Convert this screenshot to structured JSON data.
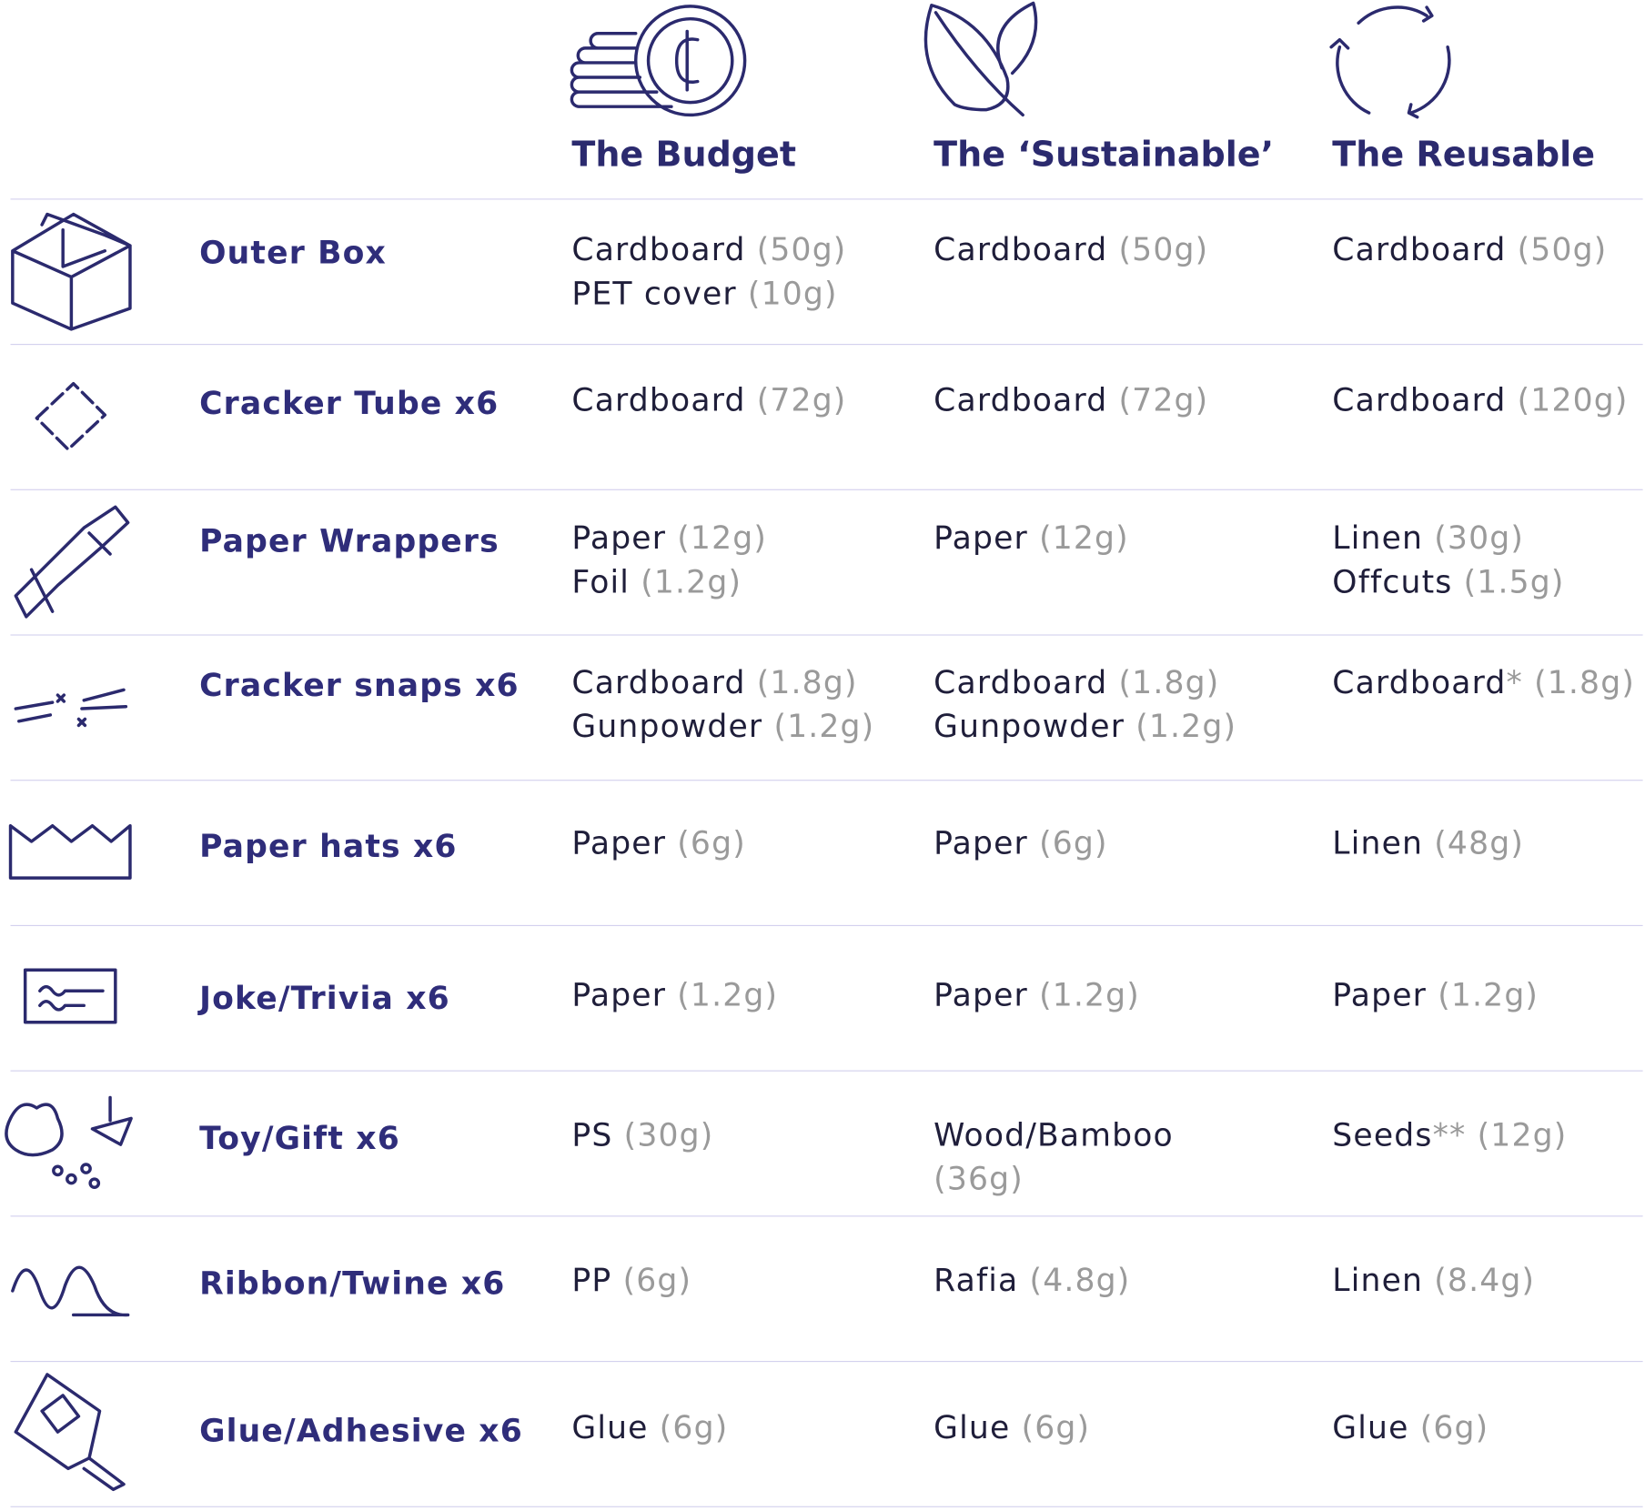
{
  "header": {
    "columns": [
      "The Budget",
      "The ‘Sustainable’",
      "The Reusable"
    ]
  },
  "rows": [
    {
      "item": "Outer Box",
      "cells": [
        [
          {
            "material": "Cardboard",
            "weight": "(50g)"
          },
          {
            "material": "PET cover",
            "weight": "(10g)"
          }
        ],
        [
          {
            "material": "Cardboard",
            "weight": "(50g)"
          }
        ],
        [
          {
            "material": "Cardboard",
            "weight": "(50g)"
          }
        ]
      ]
    },
    {
      "item": "Cracker Tube x6",
      "cells": [
        [
          {
            "material": "Cardboard",
            "weight": "(72g)"
          }
        ],
        [
          {
            "material": "Cardboard",
            "weight": "(72g)"
          }
        ],
        [
          {
            "material": "Cardboard",
            "weight": "(120g)"
          }
        ]
      ]
    },
    {
      "item": "Paper Wrappers",
      "cells": [
        [
          {
            "material": "Paper",
            "weight": "(12g)"
          },
          {
            "material": "Foil",
            "weight": "(1.2g)"
          }
        ],
        [
          {
            "material": "Paper",
            "weight": "(12g)"
          }
        ],
        [
          {
            "material": "Linen",
            "weight": "(30g)"
          },
          {
            "material": "Offcuts",
            "weight": "(1.5g)"
          }
        ]
      ]
    },
    {
      "item": "Cracker snaps x6",
      "cells": [
        [
          {
            "material": "Cardboard",
            "weight": "(1.8g)"
          },
          {
            "material": "Gunpowder",
            "weight": "(1.2g)"
          }
        ],
        [
          {
            "material": "Cardboard",
            "weight": "(1.8g)"
          },
          {
            "material": "Gunpowder",
            "weight": "(1.2g)"
          }
        ],
        [
          {
            "material": "Cardboard",
            "note": "*",
            "weight": "(1.8g)"
          }
        ]
      ]
    },
    {
      "item": "Paper hats x6",
      "cells": [
        [
          {
            "material": "Paper",
            "weight": "(6g)"
          }
        ],
        [
          {
            "material": "Paper",
            "weight": "(6g)"
          }
        ],
        [
          {
            "material": "Linen",
            "weight": "(48g)"
          }
        ]
      ]
    },
    {
      "item": "Joke/Trivia x6",
      "cells": [
        [
          {
            "material": "Paper",
            "weight": "(1.2g)"
          }
        ],
        [
          {
            "material": "Paper",
            "weight": "(1.2g)"
          }
        ],
        [
          {
            "material": "Paper",
            "weight": "(1.2g)"
          }
        ]
      ]
    },
    {
      "item": "Toy/Gift x6",
      "cells": [
        [
          {
            "material": "PS",
            "weight": "(30g)"
          }
        ],
        [
          {
            "material": "Wood/Bamboo",
            "weight": "(36g)"
          }
        ],
        [
          {
            "material": "Seeds",
            "note": "**",
            "weight": "(12g)"
          }
        ]
      ]
    },
    {
      "item": "Ribbon/Twine x6",
      "cells": [
        [
          {
            "material": "PP",
            "weight": "(6g)"
          }
        ],
        [
          {
            "material": "Rafia",
            "weight": "(4.8g)"
          }
        ],
        [
          {
            "material": "Linen",
            "weight": "(8.4g)"
          }
        ]
      ]
    },
    {
      "item": "Glue/Adhesive x6",
      "cells": [
        [
          {
            "material": "Glue",
            "weight": "(6g)"
          }
        ],
        [
          {
            "material": "Glue",
            "weight": "(6g)"
          }
        ],
        [
          {
            "material": "Glue",
            "weight": "(6g)"
          }
        ]
      ]
    }
  ]
}
